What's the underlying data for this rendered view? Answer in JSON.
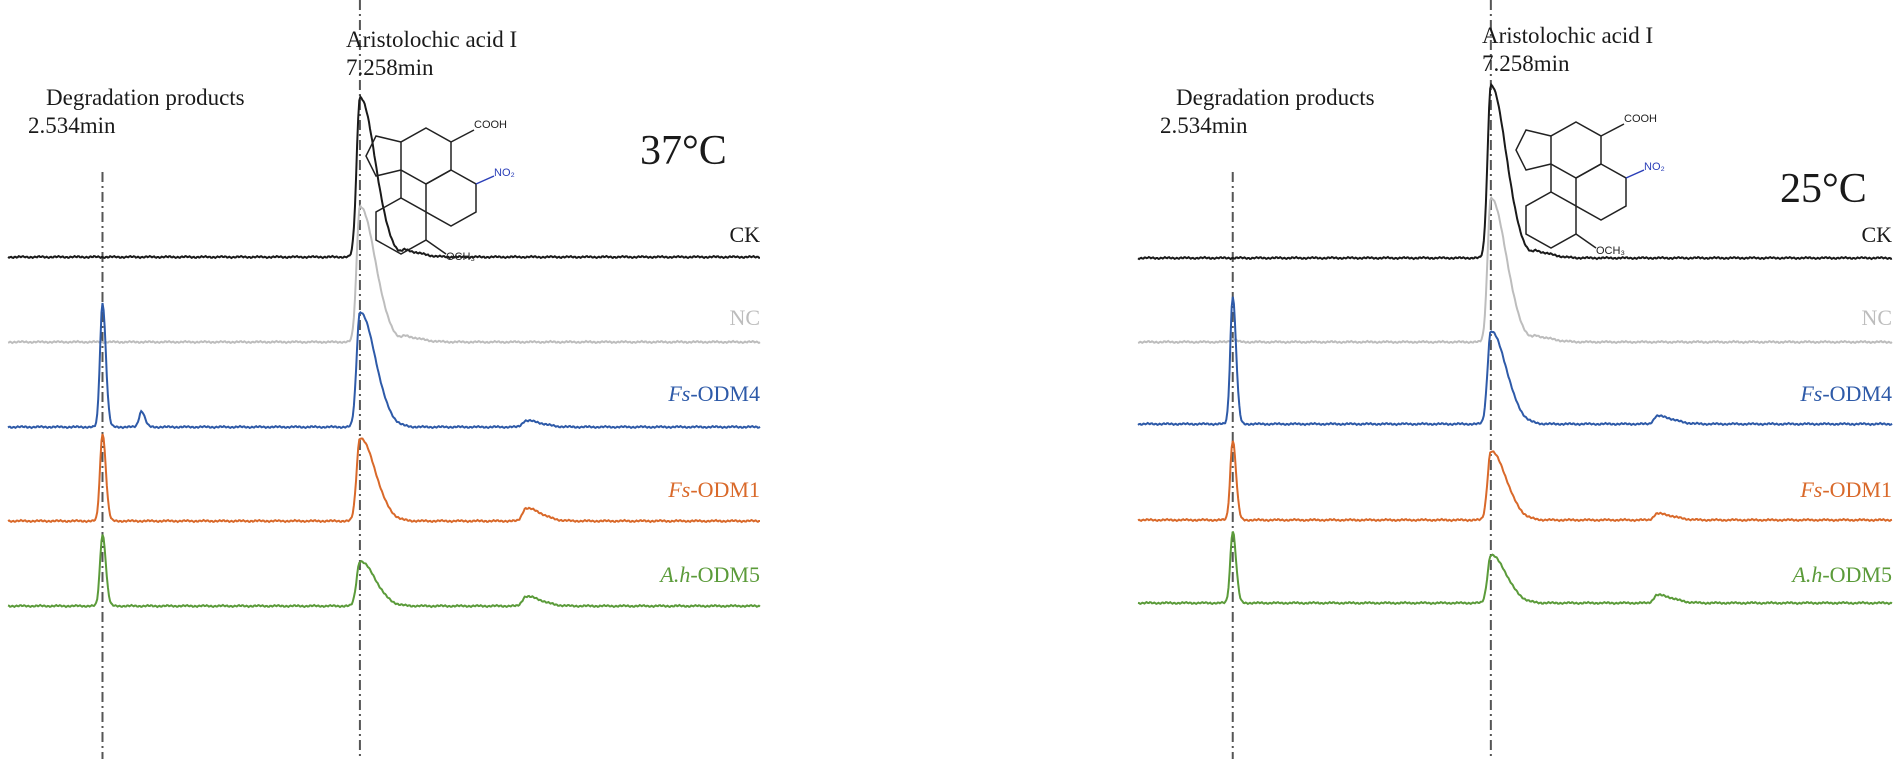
{
  "chart_data": [
    {
      "type": "line",
      "title": "37°C",
      "annotations": [
        {
          "name": "Degradation products",
          "time": "2.534min",
          "x": 2.534
        },
        {
          "name": "Aristolochic acid I",
          "time": "7.258min",
          "x": 7.258
        }
      ],
      "series": [
        {
          "name": "CK",
          "prefix": "",
          "suffix": "CK",
          "color": "#1a1a1a",
          "peaks": [
            {
              "x": 7.258,
              "height": 1.0
            },
            {
              "x": 8.1,
              "height": 0.035
            }
          ],
          "baseline_tilt": 0.0
        },
        {
          "name": "NC",
          "prefix": "",
          "suffix": "NC",
          "color": "#bdbdbd",
          "peaks": [
            {
              "x": 7.258,
              "height": 0.85
            },
            {
              "x": 8.1,
              "height": 0.03
            }
          ],
          "baseline_tilt": 0.0
        },
        {
          "name": "Fs-ODM4",
          "prefix": "Fs",
          "suffix": "-ODM4",
          "color": "#2e5aa8",
          "peaks": [
            {
              "x": 2.534,
              "height": 0.78
            },
            {
              "x": 3.25,
              "height": 0.1
            },
            {
              "x": 7.258,
              "height": 0.72
            },
            {
              "x": 10.3,
              "height": 0.04
            }
          ],
          "baseline_tilt": 0.0
        },
        {
          "name": "Fs-ODM1",
          "prefix": "Fs",
          "suffix": "-ODM1",
          "color": "#d9692a",
          "peaks": [
            {
              "x": 2.534,
              "height": 0.55
            },
            {
              "x": 7.258,
              "height": 0.52
            },
            {
              "x": 10.3,
              "height": 0.08
            }
          ],
          "baseline_tilt": 0.0
        },
        {
          "name": "A.h-ODM5",
          "prefix": "A.h",
          "suffix": "-ODM5",
          "color": "#5b9b3a",
          "peaks": [
            {
              "x": 2.534,
              "height": 0.45
            },
            {
              "x": 7.258,
              "height": 0.28
            },
            {
              "x": 10.3,
              "height": 0.06
            }
          ],
          "baseline_tilt": 0.0
        }
      ]
    },
    {
      "type": "line",
      "title": "25°C",
      "annotations": [
        {
          "name": "Degradation products",
          "time": "2.534min",
          "x": 2.534
        },
        {
          "name": "Aristolochic acid I",
          "time": "7.258min",
          "x": 7.258
        }
      ],
      "series": [
        {
          "name": "CK",
          "prefix": "",
          "suffix": "CK",
          "color": "#1a1a1a",
          "peaks": [
            {
              "x": 7.258,
              "height": 1.08
            },
            {
              "x": 8.1,
              "height": 0.035
            }
          ],
          "baseline_tilt": 0.0
        },
        {
          "name": "NC",
          "prefix": "",
          "suffix": "NC",
          "color": "#bdbdbd",
          "peaks": [
            {
              "x": 2.534,
              "height": 0.02
            },
            {
              "x": 7.258,
              "height": 0.9
            },
            {
              "x": 8.1,
              "height": 0.03
            }
          ],
          "baseline_tilt": 0.0
        },
        {
          "name": "Fs-ODM4",
          "prefix": "Fs",
          "suffix": "-ODM4",
          "color": "#2e5aa8",
          "peaks": [
            {
              "x": 2.534,
              "height": 0.8
            },
            {
              "x": 7.258,
              "height": 0.58
            },
            {
              "x": 10.3,
              "height": 0.05
            }
          ],
          "baseline_tilt": 0.0
        },
        {
          "name": "Fs-ODM1",
          "prefix": "Fs",
          "suffix": "-ODM1",
          "color": "#d9692a",
          "peaks": [
            {
              "x": 2.534,
              "height": 0.5
            },
            {
              "x": 7.258,
              "height": 0.43
            },
            {
              "x": 10.3,
              "height": 0.04
            }
          ],
          "baseline_tilt": 0.0
        },
        {
          "name": "A.h-ODM5",
          "prefix": "A.h",
          "suffix": "-ODM5",
          "color": "#5b9b3a",
          "peaks": [
            {
              "x": 2.534,
              "height": 0.45
            },
            {
              "x": 7.258,
              "height": 0.3
            },
            {
              "x": 10.3,
              "height": 0.05
            }
          ],
          "baseline_tilt": 0.0
        }
      ]
    }
  ],
  "structure_labels": {
    "cooh": "COOH",
    "no2": "NO₂",
    "och3": "OCH₃"
  }
}
